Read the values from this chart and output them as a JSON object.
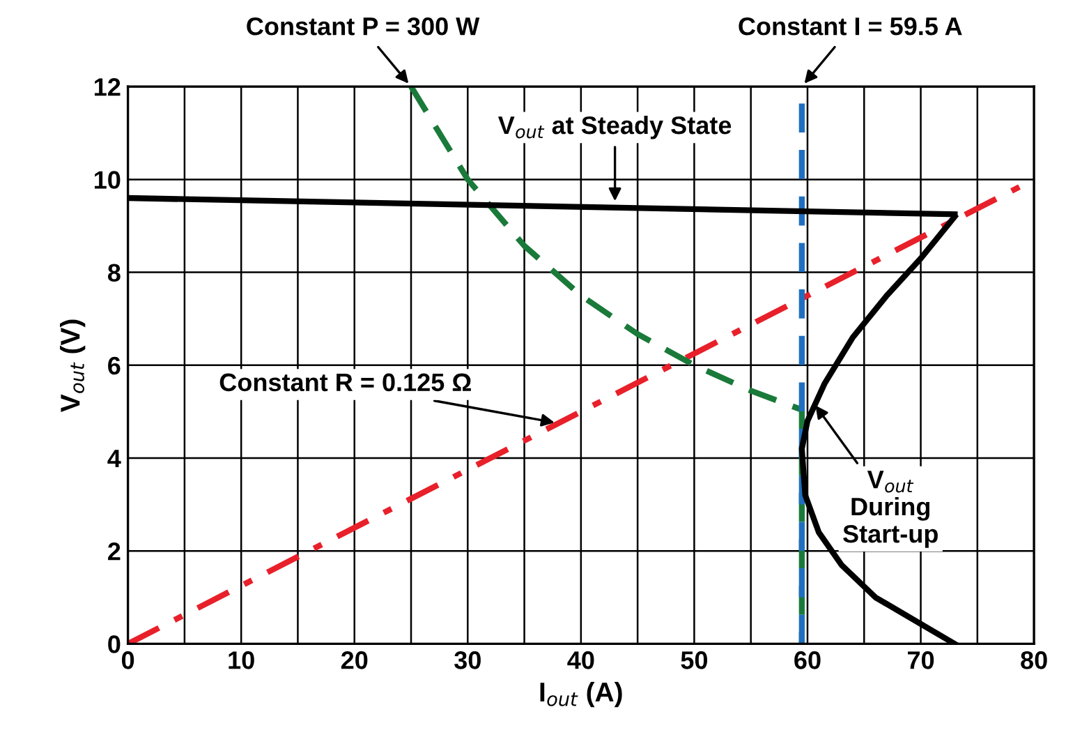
{
  "chart_data": {
    "type": "line",
    "xlabel": "I$_{out}$ (A)",
    "ylabel": "V$_{out}$ (V)",
    "xlim": [
      0,
      80
    ],
    "ylim": [
      0,
      12
    ],
    "xticks": [
      0,
      {
        "value": 5,
        "label": null
      },
      10,
      {
        "value": 15,
        "label": null
      },
      20,
      {
        "value": 25,
        "label": null
      },
      30,
      {
        "value": 35,
        "label": null
      },
      40,
      {
        "value": 45,
        "label": null
      },
      50,
      {
        "value": 55,
        "label": null
      },
      60,
      {
        "value": 65,
        "label": null
      },
      70,
      {
        "value": 75,
        "label": null
      },
      80
    ],
    "yticks": [
      0,
      2,
      4,
      6,
      8,
      10,
      12
    ],
    "grid": true,
    "series": [
      {
        "color": "#e8202a",
        "line_style": "dashdot",
        "x": [
          0,
          80
        ],
        "values": [
          0,
          10
        ]
      },
      {
        "color": "#1a7a3a",
        "line_style": "dashed",
        "x": [
          25,
          30,
          35,
          40,
          45,
          50,
          55,
          59.5,
          59.5
        ],
        "values": [
          12,
          10,
          8.57,
          7.5,
          6.67,
          6,
          5.45,
          5.04,
          0
        ]
      },
      {
        "color": "#1f6fc0",
        "line_style": "dashed",
        "x": [
          59.5,
          59.5
        ],
        "values": [
          0,
          12
        ]
      },
      {
        "color": "#000000",
        "line_style": "solid",
        "x": [
          0,
          73
        ],
        "values": [
          9.6,
          9.25
        ]
      },
      {
        "color": "#000000",
        "line_style": "solid",
        "x": [
          73,
          70,
          67,
          64,
          61.5,
          60,
          59.5,
          59.8,
          61,
          63,
          66,
          69.5,
          73
        ],
        "values": [
          9.2,
          8.3,
          7.5,
          6.6,
          5.6,
          4.8,
          4.2,
          3.2,
          2.4,
          1.7,
          1.0,
          0.5,
          0
        ]
      }
    ],
    "annotations": [
      {
        "text": "Constant P = 300 W",
        "x": 25,
        "y": 12
      },
      {
        "text": "Constant I = 59.5 A",
        "x": 59.5,
        "y": 12
      },
      {
        "text": "V$_{out}$ at Steady State",
        "x": 43,
        "y": 9.45
      },
      {
        "text": "Constant R = 0.125 Ω",
        "x": 38,
        "y": 4.75
      },
      {
        "text": "V$_{out}$\nDuring\nStart-up",
        "x": 60.5,
        "y": 5.2
      }
    ]
  }
}
